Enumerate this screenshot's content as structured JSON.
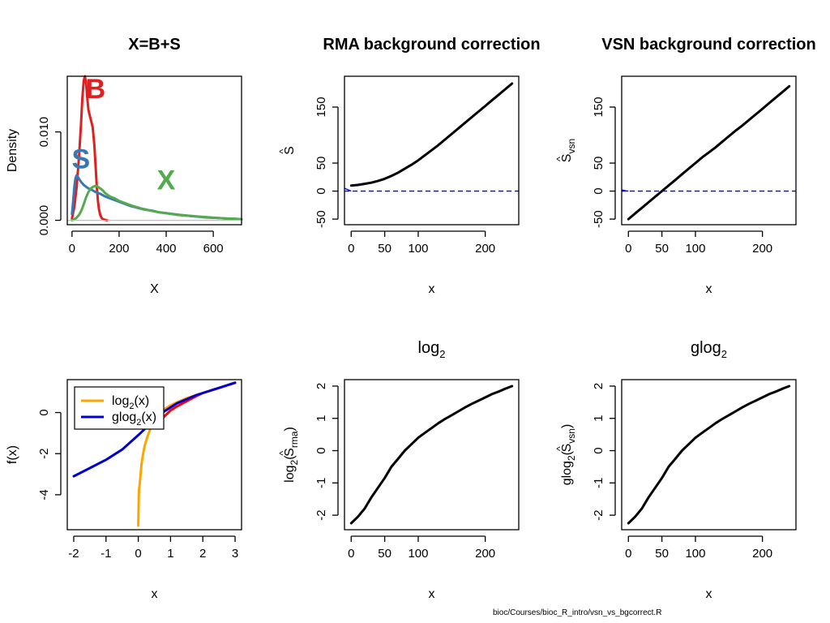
{
  "figure": {
    "footer": "bioc/Courses/bioc_R_intro/vsn_vs_bgcorrect.R"
  },
  "chart_data": [
    {
      "id": "p1",
      "type": "line",
      "title": "X=B+S",
      "xlabel": "X",
      "ylabel": "Density",
      "xlim": [
        -20,
        720
      ],
      "ylim": [
        -0.0005,
        0.0163
      ],
      "xticks": [
        0,
        200,
        400,
        600
      ],
      "yticks": [
        0.0,
        0.01
      ],
      "ytick_labels": [
        "0.000",
        "0.010"
      ],
      "grid": false,
      "annotations": [
        {
          "text": "B",
          "x": 100,
          "y": 0.0138,
          "color": "#DF2020"
        },
        {
          "text": "S",
          "x": 38,
          "y": 0.0059,
          "color": "#3A78B4"
        },
        {
          "text": "X",
          "x": 400,
          "y": 0.0035,
          "color": "#55AA50"
        }
      ],
      "series": [
        {
          "color": "#DF2020",
          "x": [
            0,
            10,
            20,
            30,
            38,
            44,
            50,
            55,
            60,
            65,
            70,
            76,
            82,
            88,
            95,
            100,
            105,
            110,
            115,
            120,
            125,
            130,
            140,
            150
          ],
          "y": [
            0.0002,
            0.0015,
            0.0038,
            0.0072,
            0.0108,
            0.0138,
            0.0158,
            0.0163,
            0.0155,
            0.0138,
            0.0125,
            0.0118,
            0.0112,
            0.0105,
            0.0085,
            0.0062,
            0.004,
            0.0022,
            0.0012,
            0.0006,
            0.0003,
            0.00015,
            5e-05,
            0.0
          ]
        },
        {
          "color": "#3A78B4",
          "x": [
            0,
            5,
            10,
            15,
            20,
            30,
            40,
            50,
            60,
            70,
            80,
            100,
            120,
            140,
            160,
            180,
            200,
            220,
            250,
            280,
            310,
            340,
            370,
            400,
            430,
            460,
            500,
            540,
            580,
            620,
            660,
            700,
            720
          ],
          "y": [
            0.0007,
            0.0022,
            0.0038,
            0.0048,
            0.0051,
            0.0047,
            0.0043,
            0.004,
            0.0038,
            0.0036,
            0.0035,
            0.0032,
            0.003,
            0.0027,
            0.0025,
            0.0023,
            0.0021,
            0.0019,
            0.0016,
            0.0014,
            0.0012,
            0.0011,
            0.0009,
            0.0008,
            0.0007,
            0.0006,
            0.0005,
            0.0004,
            0.0003,
            0.00025,
            0.0002,
            0.00015,
            0.00012
          ]
        },
        {
          "color": "#55AA50",
          "x": [
            0,
            10,
            20,
            30,
            40,
            50,
            60,
            70,
            80,
            90,
            100,
            110,
            120,
            130,
            140,
            160,
            180,
            200,
            230,
            260,
            300,
            350,
            400,
            450,
            500,
            550,
            600,
            650,
            700,
            720
          ],
          "y": [
            0.0,
            0.0001,
            0.0003,
            0.0006,
            0.0011,
            0.0018,
            0.0026,
            0.0032,
            0.0036,
            0.0038,
            0.0039,
            0.0038,
            0.0036,
            0.0034,
            0.0031,
            0.0027,
            0.0025,
            0.0022,
            0.0019,
            0.0016,
            0.0013,
            0.001,
            0.0008,
            0.0006,
            0.0005,
            0.0004,
            0.0003,
            0.0002,
            0.00015,
            0.0001
          ]
        },
        {
          "color": "#BFBFBF",
          "x": [
            -20,
            720
          ],
          "y": [
            0,
            0
          ]
        }
      ]
    },
    {
      "id": "p2",
      "type": "line",
      "title": "RMA background correction",
      "xlabel": "x",
      "ylabel_base": "S",
      "ylabel_hat": "^",
      "xlim": [
        -10,
        250
      ],
      "ylim": [
        -60,
        205
      ],
      "xticks": [
        0,
        50,
        100,
        200
      ],
      "yticks": [
        -50,
        0,
        50,
        150
      ],
      "hline": {
        "y": 0,
        "color": "#0000FF",
        "dash": true,
        "x_range": [
          -10,
          250
        ],
        "hook": [
          [
            -10,
            5
          ],
          [
            -3,
            1.5
          ],
          [
            0,
            0
          ]
        ]
      },
      "series": [
        {
          "color": "#000000",
          "x": [
            0,
            10,
            20,
            30,
            40,
            50,
            60,
            70,
            80,
            90,
            100,
            110,
            120,
            130,
            140,
            150,
            160,
            170,
            180,
            190,
            200,
            210,
            220,
            230,
            240
          ],
          "y": [
            10,
            11,
            13,
            15,
            18,
            22,
            27,
            33,
            40,
            47,
            55,
            64,
            73,
            82,
            92,
            102,
            112,
            122,
            132,
            142,
            152,
            162,
            172,
            182,
            192
          ]
        }
      ]
    },
    {
      "id": "p3",
      "type": "line",
      "title": "VSN background correction",
      "xlabel": "x",
      "ylabel_base": "S",
      "ylabel_hat": "^",
      "ylabel_sub": "vsn",
      "xlim": [
        -10,
        250
      ],
      "ylim": [
        -60,
        205
      ],
      "xticks": [
        0,
        50,
        100,
        200
      ],
      "yticks": [
        -50,
        0,
        50,
        150
      ],
      "hline": {
        "y": 0,
        "color": "#0000FF",
        "dash": true,
        "x_range": [
          -10,
          250
        ],
        "hook": [
          [
            -10,
            2
          ],
          [
            -4,
            0.5
          ],
          [
            0,
            0
          ]
        ]
      },
      "series": [
        {
          "color": "#000000",
          "x": [
            0,
            10,
            20,
            30,
            40,
            50,
            60,
            70,
            80,
            90,
            100,
            110,
            120,
            130,
            140,
            150,
            160,
            170,
            180,
            190,
            200,
            210,
            220,
            230,
            240
          ],
          "y": [
            -50,
            -40,
            -30,
            -20,
            -10,
            0,
            10,
            20,
            30,
            40,
            50,
            60,
            69,
            78,
            88,
            98,
            108,
            117,
            127,
            137,
            147,
            157,
            167,
            177,
            187
          ]
        }
      ]
    },
    {
      "id": "p4",
      "type": "line",
      "title": "",
      "xlabel": "x",
      "ylabel": "f(x)",
      "xlim": [
        -2.2,
        3.2
      ],
      "ylim": [
        -5.7,
        1.6
      ],
      "xticks": [
        -2,
        -1,
        0,
        1,
        2,
        3
      ],
      "yticks": [
        -4,
        -2,
        0
      ],
      "legend": {
        "position": "top-left",
        "entries": [
          {
            "base": "log",
            "sub": "2",
            "tail": "(x)",
            "color": "#FFA500"
          },
          {
            "base": "glog",
            "sub": "2",
            "tail": "(x)",
            "color": "#0000CD"
          }
        ]
      },
      "series": [
        {
          "color": "#FF0000",
          "x": [
            0.6,
            0.8,
            1.0,
            1.2,
            1.5,
            1.8,
            2.0,
            2.3,
            2.6,
            3.0
          ],
          "y": [
            -0.6,
            -0.2,
            0.1,
            0.3,
            0.55,
            0.8,
            0.95,
            1.1,
            1.25,
            1.45
          ]
        },
        {
          "color": "#FFA500",
          "x": [
            0.0,
            0.01,
            0.02,
            0.05,
            0.1,
            0.15,
            0.2,
            0.3,
            0.4,
            0.5,
            0.6,
            0.7,
            0.8,
            1.0,
            1.2,
            1.5,
            1.8,
            2.0,
            2.3,
            2.6,
            3.0
          ],
          "y": [
            -5.5,
            -4.5,
            -3.8,
            -3.4,
            -2.5,
            -2.0,
            -1.6,
            -1.1,
            -0.7,
            -0.4,
            -0.2,
            0.0,
            0.15,
            0.35,
            0.5,
            0.7,
            0.85,
            0.95,
            1.1,
            1.25,
            1.45
          ]
        },
        {
          "color": "#0000CD",
          "x": [
            -2.0,
            -1.5,
            -1.0,
            -0.5,
            0.0,
            0.2,
            0.4,
            0.6,
            0.8,
            1.0,
            1.2,
            1.5,
            1.8,
            2.0,
            2.3,
            2.6,
            3.0
          ],
          "y": [
            -3.1,
            -2.7,
            -2.3,
            -1.8,
            -1.1,
            -0.8,
            -0.5,
            -0.2,
            0.05,
            0.25,
            0.45,
            0.65,
            0.85,
            0.95,
            1.1,
            1.25,
            1.45
          ]
        }
      ]
    },
    {
      "id": "p5",
      "type": "line",
      "title_base": "log",
      "title_sub": "2",
      "xlabel": "x",
      "ylabel_base": "log",
      "ylabel_sub": "2",
      "ylabel_open": "(",
      "ylabel_inner": "S",
      "ylabel_hat": "^",
      "ylabel_inner_sub": "rma",
      "ylabel_close": ")",
      "xlim": [
        -10,
        250
      ],
      "ylim": [
        -2.45,
        2.2
      ],
      "xticks": [
        0,
        50,
        100,
        200
      ],
      "yticks": [
        -2,
        -1,
        0,
        1,
        2
      ],
      "series": [
        {
          "color": "#000000",
          "x": [
            0,
            10,
            20,
            30,
            40,
            50,
            60,
            70,
            80,
            90,
            100,
            110,
            120,
            130,
            140,
            150,
            160,
            170,
            180,
            190,
            200,
            210,
            220,
            230,
            240
          ],
          "y": [
            -2.25,
            -2.05,
            -1.8,
            -1.45,
            -1.15,
            -0.85,
            -0.5,
            -0.25,
            0.0,
            0.2,
            0.4,
            0.55,
            0.7,
            0.85,
            0.98,
            1.1,
            1.22,
            1.34,
            1.45,
            1.55,
            1.65,
            1.75,
            1.83,
            1.92,
            2.0
          ]
        }
      ]
    },
    {
      "id": "p6",
      "type": "line",
      "title_base": "glog",
      "title_sub": "2",
      "xlabel": "x",
      "ylabel_base": "glog",
      "ylabel_sub": "2",
      "ylabel_open": "(",
      "ylabel_inner": "S",
      "ylabel_hat": "^",
      "ylabel_inner_sub": "vsn",
      "ylabel_close": ")",
      "xlim": [
        -10,
        250
      ],
      "ylim": [
        -2.45,
        2.2
      ],
      "xticks": [
        0,
        50,
        100,
        200
      ],
      "yticks": [
        -2,
        -1,
        0,
        1,
        2
      ],
      "series": [
        {
          "color": "#000000",
          "x": [
            0,
            10,
            20,
            30,
            40,
            50,
            60,
            70,
            80,
            90,
            100,
            110,
            120,
            130,
            140,
            150,
            160,
            170,
            180,
            190,
            200,
            210,
            220,
            230,
            240
          ],
          "y": [
            -2.25,
            -2.05,
            -1.8,
            -1.45,
            -1.15,
            -0.85,
            -0.5,
            -0.25,
            0.0,
            0.2,
            0.4,
            0.55,
            0.7,
            0.85,
            0.98,
            1.1,
            1.22,
            1.34,
            1.45,
            1.55,
            1.65,
            1.75,
            1.83,
            1.92,
            2.0
          ]
        }
      ]
    }
  ]
}
